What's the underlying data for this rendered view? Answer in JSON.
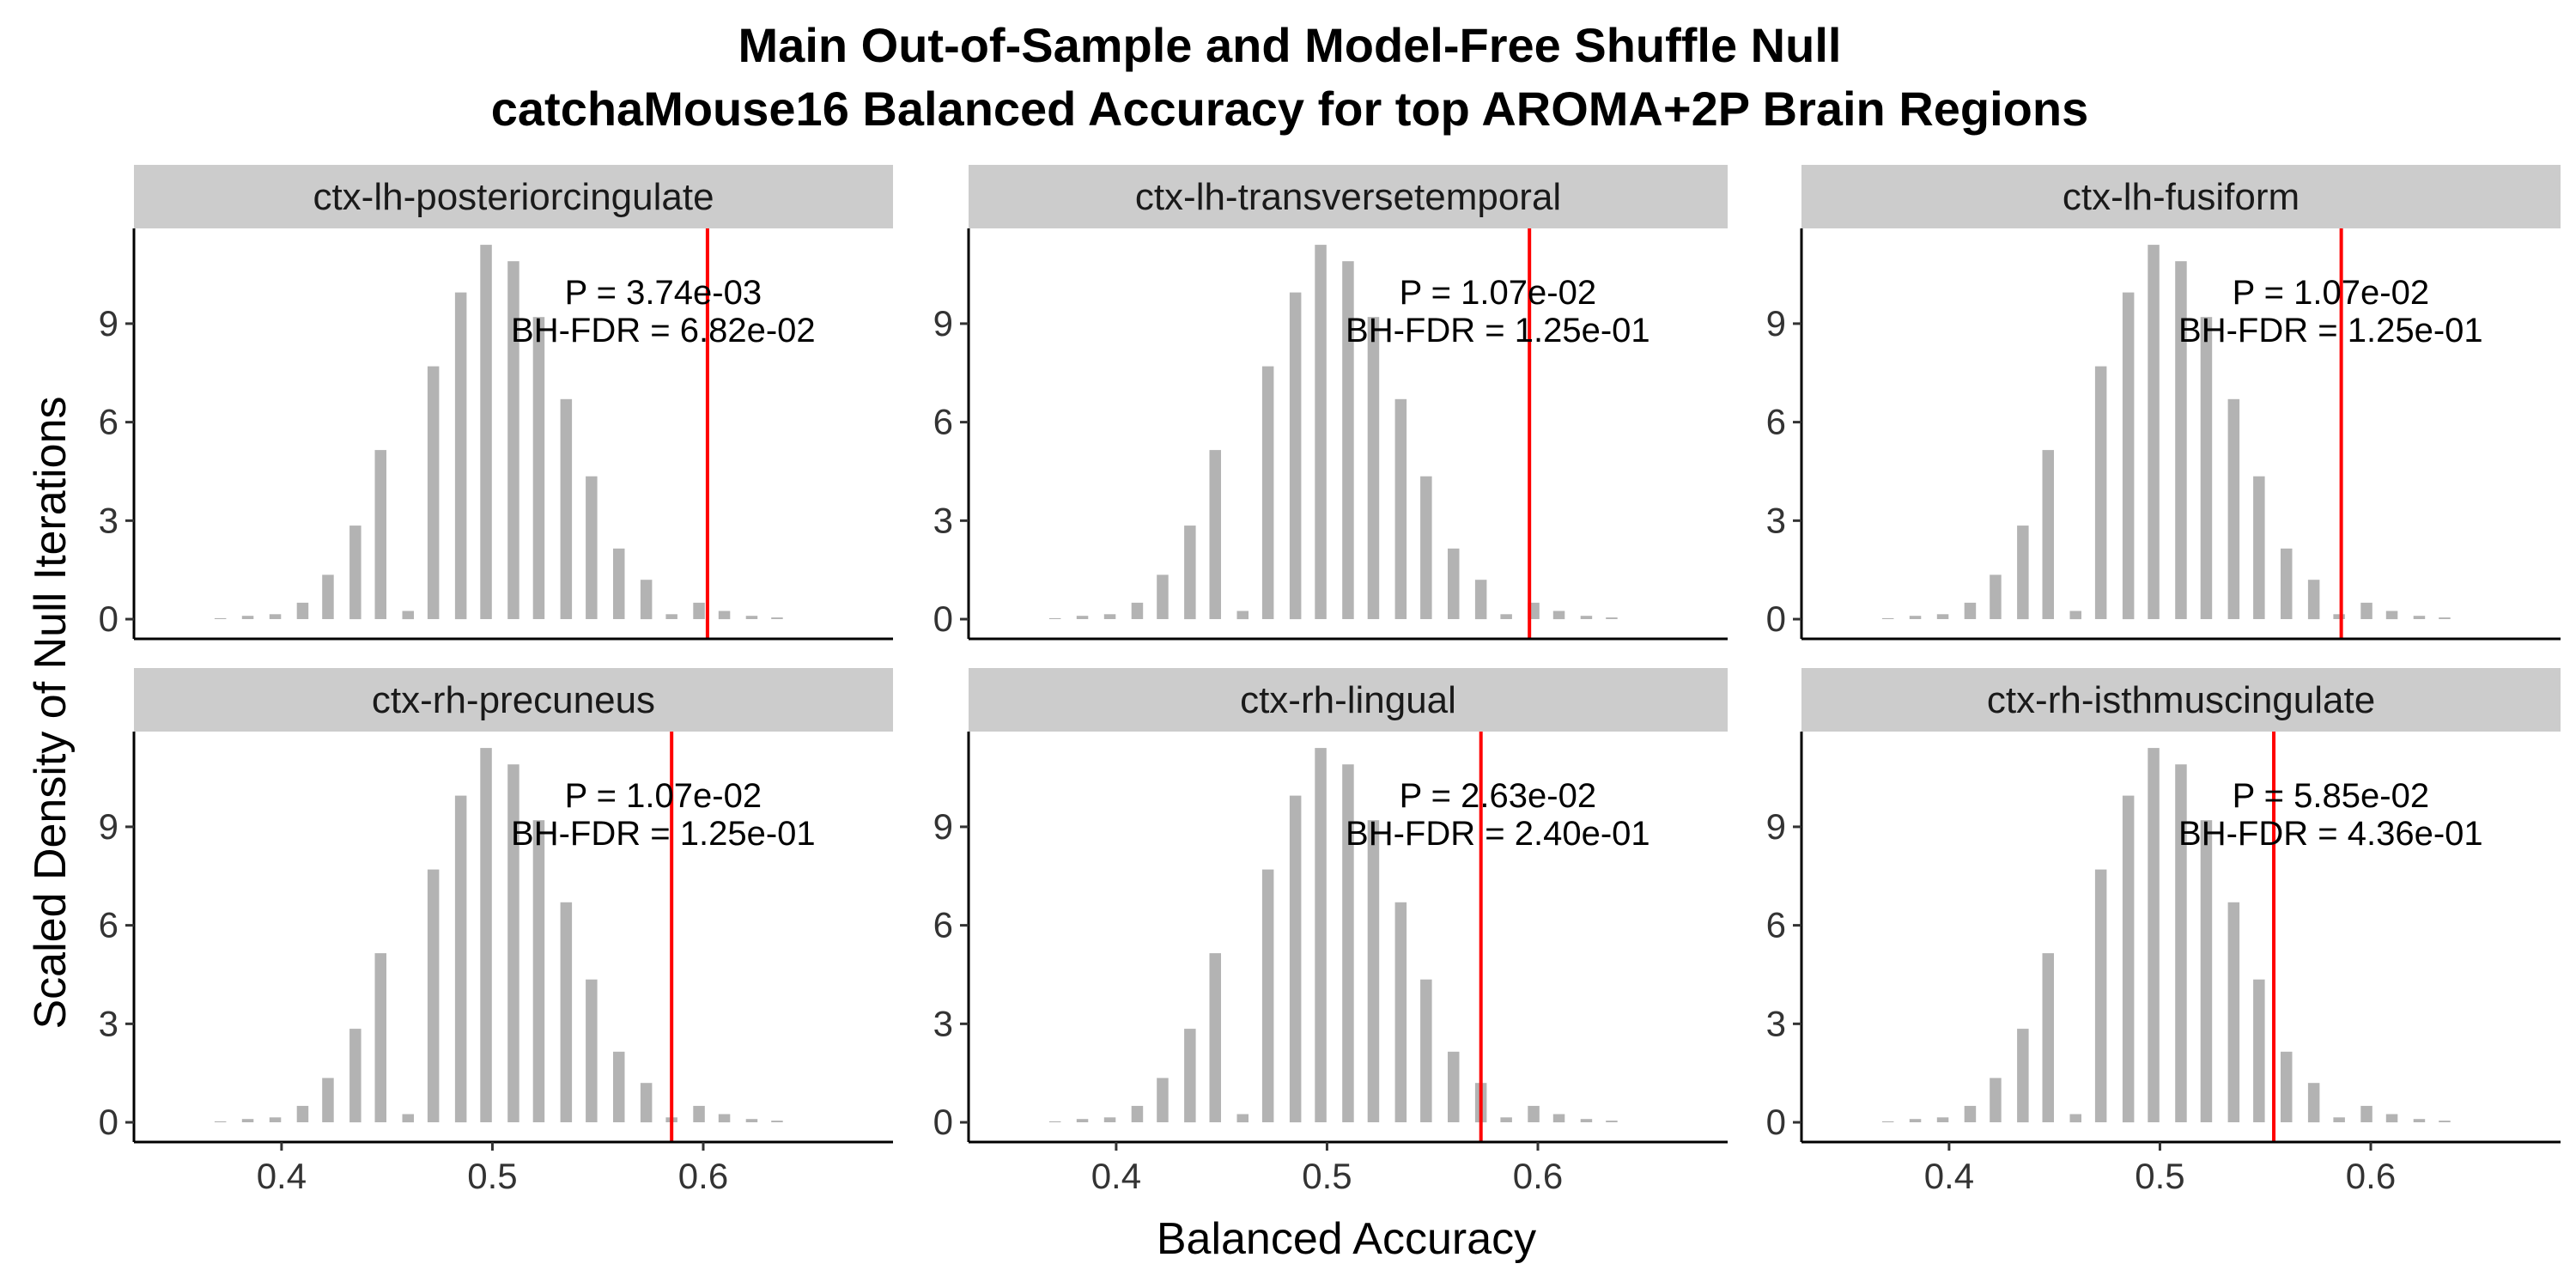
{
  "chart_data": {
    "type": "bar",
    "title_line1": "Main Out-of-Sample and Model-Free Shuffle Null",
    "title_line2": "catchaMouse16 Balanced Accuracy for top AROMA+2P Brain Regions",
    "xlabel": "Balanced Accuracy",
    "ylabel": "Scaled Density of Null Iterations",
    "xlim": [
      0.33,
      0.69
    ],
    "ylim": [
      -0.6,
      11.9
    ],
    "xticks": [
      0.4,
      0.5,
      0.6
    ],
    "xtick_labels": [
      "0.4",
      "0.5",
      "0.6"
    ],
    "yticks": [
      0,
      3,
      6,
      9
    ],
    "ytick_labels": [
      "0",
      "3",
      "6",
      "9"
    ],
    "null_distribution": {
      "x": [
        0.371,
        0.384,
        0.397,
        0.41,
        0.422,
        0.435,
        0.447,
        0.46,
        0.472,
        0.485,
        0.497,
        0.51,
        0.522,
        0.535,
        0.547,
        0.56,
        0.573,
        0.585,
        0.598,
        0.61,
        0.623,
        0.635
      ],
      "values": [
        0.03,
        0.1,
        0.15,
        0.5,
        1.35,
        2.85,
        5.15,
        0.25,
        7.7,
        9.95,
        11.4,
        10.9,
        9.2,
        6.7,
        4.35,
        2.15,
        1.2,
        0.15,
        0.5,
        0.25,
        0.1,
        0.05
      ],
      "bar_color": "#b3b3b3",
      "bar_width": 0.0055
    },
    "observed_line_color": "#ff0000",
    "panels": [
      {
        "name": "ctx-lh-posteriorcingulate",
        "observed": 0.602,
        "p_label": "P = 3.74e-03",
        "fdr_label": "BH-FDR = 6.82e-02"
      },
      {
        "name": "ctx-lh-transversetemporal",
        "observed": 0.596,
        "p_label": "P = 1.07e-02",
        "fdr_label": "BH-FDR = 1.25e-01"
      },
      {
        "name": "ctx-lh-fusiform",
        "observed": 0.586,
        "p_label": "P = 1.07e-02",
        "fdr_label": "BH-FDR = 1.25e-01"
      },
      {
        "name": "ctx-rh-precuneus",
        "observed": 0.585,
        "p_label": "P = 1.07e-02",
        "fdr_label": "BH-FDR = 1.25e-01"
      },
      {
        "name": "ctx-rh-lingual",
        "observed": 0.573,
        "p_label": "P = 2.63e-02",
        "fdr_label": "BH-FDR = 2.40e-01"
      },
      {
        "name": "ctx-rh-isthmuscingulate",
        "observed": 0.554,
        "p_label": "P = 5.85e-02",
        "fdr_label": "BH-FDR = 4.36e-01"
      }
    ]
  }
}
